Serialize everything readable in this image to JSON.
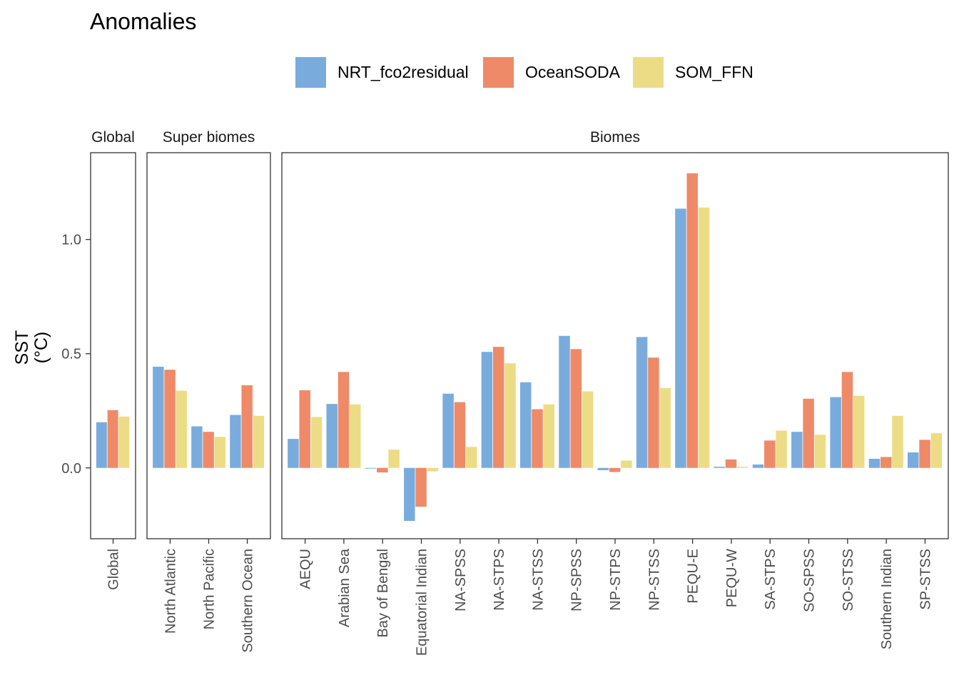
{
  "chart_data": {
    "type": "bar",
    "title": "Anomalies",
    "ylabel_line1": "SST",
    "ylabel_line2": "(°C)",
    "ylim": [
      -0.31,
      1.38
    ],
    "yticks": [
      0.0,
      0.5,
      1.0
    ],
    "ytick_labels": [
      "0.0",
      "0.5",
      "1.0"
    ],
    "grid": false,
    "legend_position": "top",
    "series_names": [
      "NRT_fco2residual",
      "OceanSODA",
      "SOM_FFN"
    ],
    "series_colors": [
      "#79acdd",
      "#ee8a68",
      "#ecdc86"
    ],
    "panels": [
      {
        "name": "Global",
        "categories": [
          "Global"
        ],
        "values": [
          [
            0.2
          ],
          [
            0.253
          ],
          [
            0.225
          ]
        ]
      },
      {
        "name": "Super biomes",
        "categories": [
          "North Atlantic",
          "North Pacific",
          "Southern Ocean"
        ],
        "values": [
          [
            0.443,
            0.182,
            0.232
          ],
          [
            0.43,
            0.158,
            0.362
          ],
          [
            0.338,
            0.136,
            0.228
          ]
        ]
      },
      {
        "name": "Biomes",
        "categories": [
          "AEQU",
          "Arabian Sea",
          "Bay of Bengal",
          "Equatorial Indian",
          "NA-SPSS",
          "NA-STPS",
          "NA-STSS",
          "NP-SPSS",
          "NP-STPS",
          "NP-STSS",
          "PEQU-E",
          "PEQU-W",
          "SA-STPS",
          "SO-SPSS",
          "SO-STSS",
          "Southern Indian",
          "SP-STSS"
        ],
        "values": [
          [
            0.127,
            0.28,
            -0.003,
            -0.232,
            0.325,
            0.508,
            0.375,
            0.578,
            -0.01,
            0.573,
            1.135,
            0.005,
            0.015,
            0.158,
            0.31,
            0.04,
            0.068
          ],
          [
            0.34,
            0.42,
            -0.02,
            -0.17,
            0.288,
            0.53,
            0.257,
            0.52,
            -0.018,
            0.483,
            1.29,
            0.037,
            0.12,
            0.303,
            0.42,
            0.048,
            0.123
          ],
          [
            0.223,
            0.278,
            0.08,
            -0.015,
            0.092,
            0.458,
            0.278,
            0.335,
            0.032,
            0.35,
            1.14,
            0.005,
            0.163,
            0.145,
            0.316,
            0.228,
            0.152
          ]
        ]
      }
    ]
  }
}
